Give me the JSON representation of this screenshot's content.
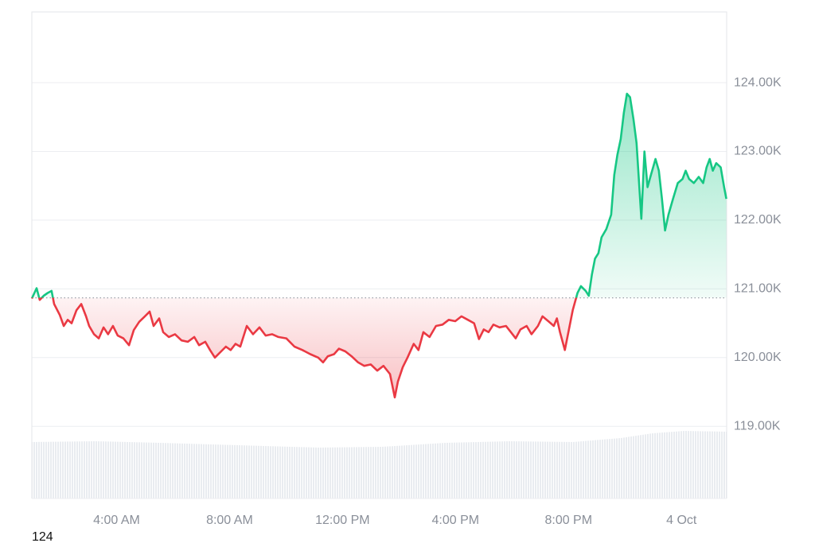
{
  "chart_data": {
    "type": "line",
    "x": [
      1.0,
      1.17,
      1.28,
      1.42,
      1.56,
      1.7,
      1.79,
      1.99,
      2.13,
      2.27,
      2.41,
      2.58,
      2.75,
      2.92,
      3.03,
      3.2,
      3.37,
      3.54,
      3.7,
      3.87,
      4.04,
      4.24,
      4.44,
      4.61,
      4.8,
      5.0,
      5.17,
      5.31,
      5.51,
      5.65,
      5.85,
      6.07,
      6.3,
      6.52,
      6.75,
      6.92,
      7.14,
      7.31,
      7.48,
      7.7,
      7.87,
      8.04,
      8.21,
      8.38,
      8.61,
      8.83,
      9.06,
      9.28,
      9.51,
      9.73,
      10.01,
      10.3,
      10.58,
      10.86,
      11.14,
      11.31,
      11.48,
      11.7,
      11.87,
      12.1,
      12.32,
      12.55,
      12.77,
      13.0,
      13.23,
      13.45,
      13.68,
      13.85,
      13.96,
      14.13,
      14.3,
      14.52,
      14.69,
      14.86,
      15.08,
      15.31,
      15.54,
      15.76,
      15.99,
      16.21,
      16.44,
      16.66,
      16.83,
      17.0,
      17.17,
      17.34,
      17.56,
      17.79,
      17.96,
      18.13,
      18.3,
      18.52,
      18.69,
      18.92,
      19.08,
      19.31,
      19.48,
      19.59,
      19.7,
      19.87,
      20.04,
      20.15,
      20.32,
      20.44,
      20.61,
      20.72,
      20.83,
      20.94,
      21.06,
      21.17,
      21.34,
      21.51,
      21.62,
      21.73,
      21.85,
      21.96,
      22.07,
      22.18,
      22.3,
      22.41,
      22.58,
      22.69,
      22.8,
      22.92,
      23.08,
      23.2,
      23.31,
      23.42,
      23.54,
      23.7,
      23.87,
      24.04,
      24.15,
      24.27,
      24.44,
      24.61,
      24.77,
      24.89,
      25.0,
      25.11,
      25.23,
      25.39,
      25.51,
      25.59
    ],
    "values": [
      120860,
      121010,
      120840,
      120900,
      120940,
      120970,
      120780,
      120620,
      120460,
      120550,
      120500,
      120690,
      120780,
      120600,
      120460,
      120340,
      120280,
      120440,
      120340,
      120460,
      120320,
      120280,
      120180,
      120400,
      120520,
      120600,
      120670,
      120460,
      120570,
      120370,
      120300,
      120340,
      120250,
      120230,
      120300,
      120180,
      120230,
      120110,
      120000,
      120090,
      120160,
      120110,
      120200,
      120160,
      120460,
      120340,
      120440,
      120320,
      120340,
      120300,
      120280,
      120160,
      120110,
      120050,
      120000,
      119930,
      120020,
      120050,
      120130,
      120090,
      120020,
      119930,
      119880,
      119900,
      119810,
      119880,
      119760,
      119420,
      119650,
      119860,
      120000,
      120200,
      120110,
      120370,
      120300,
      120460,
      120480,
      120550,
      120530,
      120600,
      120550,
      120500,
      120270,
      120410,
      120370,
      120480,
      120440,
      120460,
      120370,
      120280,
      120410,
      120460,
      120340,
      120460,
      120600,
      120520,
      120460,
      120570,
      120370,
      120110,
      120460,
      120690,
      120940,
      121040,
      120970,
      120900,
      121210,
      121440,
      121520,
      121750,
      121870,
      122080,
      122660,
      122950,
      123180,
      123560,
      123840,
      123790,
      123470,
      123120,
      122020,
      123000,
      122480,
      122660,
      122890,
      122720,
      122310,
      121850,
      122080,
      122310,
      122540,
      122600,
      122720,
      122600,
      122540,
      122630,
      122540,
      122770,
      122890,
      122720,
      122830,
      122770,
      122480,
      122310
    ],
    "baseline": 120870,
    "color_up": "#16c784",
    "color_down": "#ea3943",
    "xlim": [
      1,
      25.6
    ],
    "xticks": [
      {
        "value": 4,
        "label": "4:00 AM"
      },
      {
        "value": 8,
        "label": "8:00 AM"
      },
      {
        "value": 12,
        "label": "12:00 PM"
      },
      {
        "value": 16,
        "label": "4:00 PM"
      },
      {
        "value": 20,
        "label": "8:00 PM"
      },
      {
        "value": 24,
        "label": "4 Oct"
      }
    ],
    "ylim": [
      117950,
      125030
    ],
    "yticks": [
      {
        "value": 119000,
        "label": "119.00K"
      },
      {
        "value": 120000,
        "label": "120.00K"
      },
      {
        "value": 121000,
        "label": "121.00K"
      },
      {
        "value": 122000,
        "label": "122.00K"
      },
      {
        "value": 123000,
        "label": "123.00K"
      },
      {
        "value": 124000,
        "label": "124.00K"
      }
    ],
    "grid": true,
    "footer_text": "124"
  }
}
